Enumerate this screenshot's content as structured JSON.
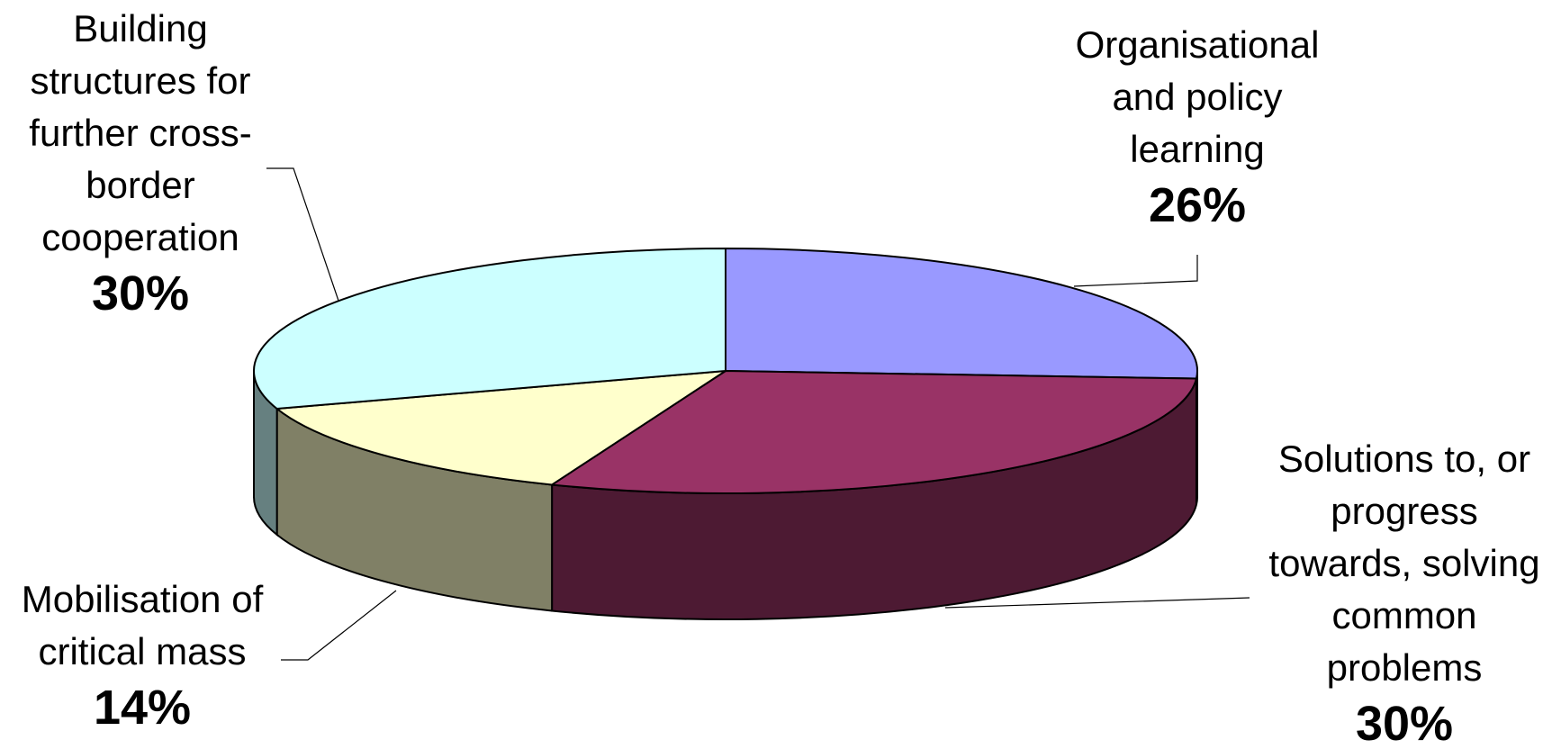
{
  "chart_data": {
    "type": "pie",
    "style": "3d",
    "slices": [
      {
        "label": "Organisational and policy learning",
        "label_lines": [
          "Organisational",
          "and policy",
          "learning"
        ],
        "value": 26,
        "value_text": "26%",
        "top_color": "#9999FF",
        "side_color": "#5F5FA8"
      },
      {
        "label": "Solutions to, or progress towards, solving common problems",
        "label_lines": [
          "Solutions to, or",
          "progress",
          "towards, solving",
          "common",
          "problems"
        ],
        "value": 30,
        "value_text": "30%",
        "top_color": "#993366",
        "side_color": "#4D1A33"
      },
      {
        "label": "Mobilisation of critical mass",
        "label_lines": [
          "Mobilisation of",
          "critical mass"
        ],
        "value": 14,
        "value_text": "14%",
        "top_color": "#FFFFCC",
        "side_color": "#808066"
      },
      {
        "label": "Building structures for further cross-border cooperation",
        "label_lines": [
          "Building",
          "structures for",
          "further cross-",
          "border",
          "cooperation"
        ],
        "value": 30,
        "value_text": "30%",
        "top_color": "#CCFFFF",
        "side_color": "#668080"
      }
    ]
  }
}
